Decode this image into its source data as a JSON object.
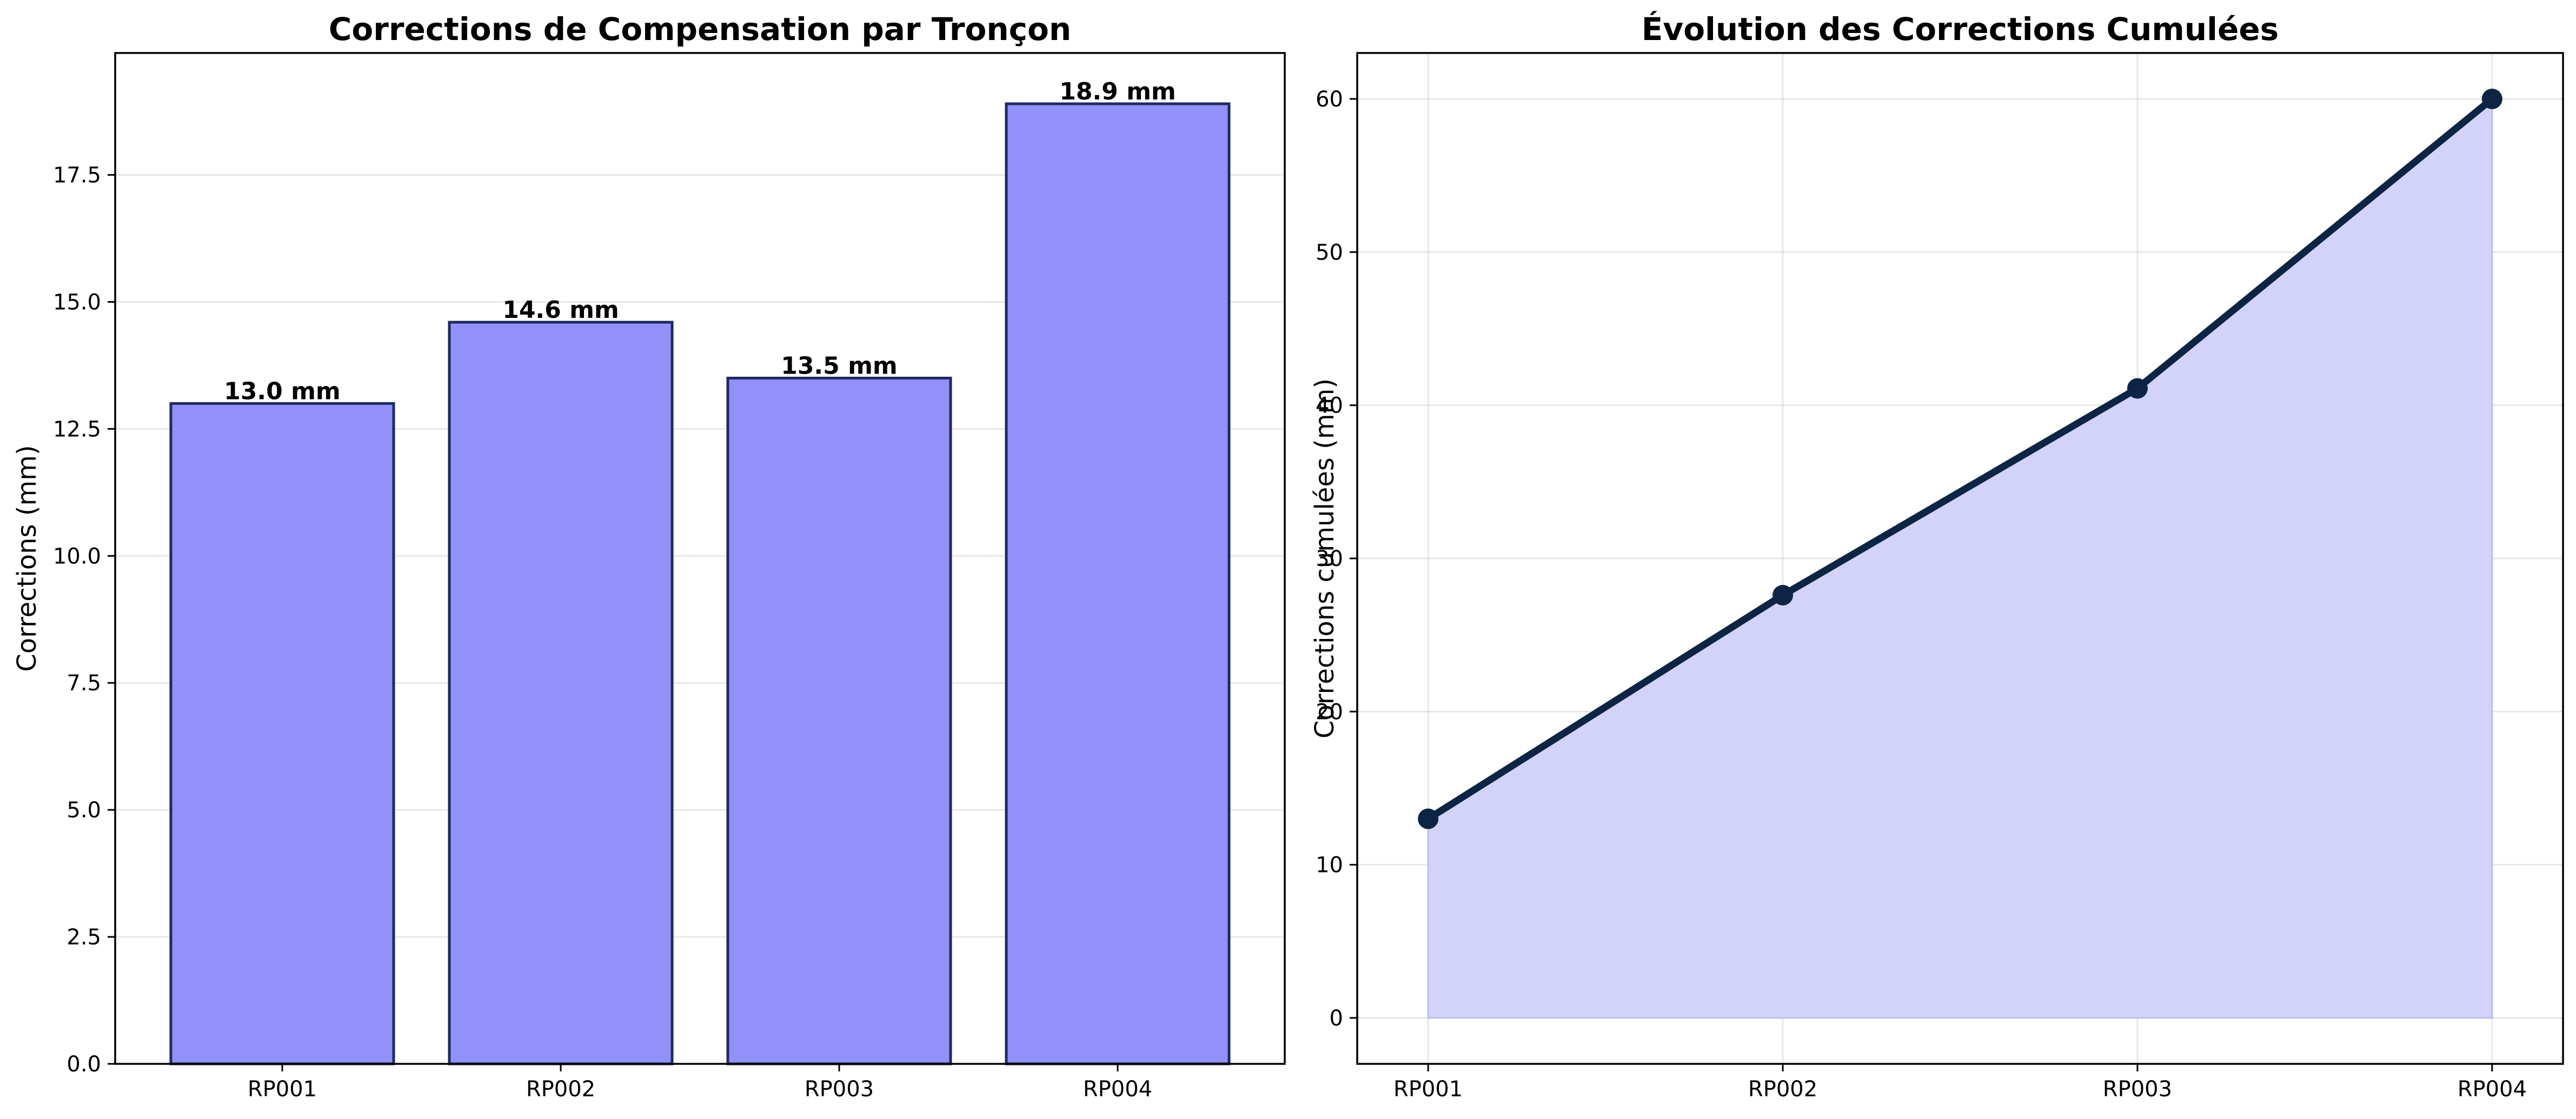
{
  "chart_data": [
    {
      "type": "bar",
      "title": "Corrections de Compensation par Tronçon",
      "xlabel": "",
      "ylabel": "Corrections (mm)",
      "categories": [
        "RP001",
        "RP002",
        "RP003",
        "RP004"
      ],
      "values": [
        13.0,
        14.6,
        13.5,
        18.9
      ],
      "data_labels": [
        "13.0 mm",
        "14.6 mm",
        "13.5 mm",
        "18.9 mm"
      ],
      "ylim": [
        0,
        19.9
      ],
      "yticks": [
        0.0,
        2.5,
        5.0,
        7.5,
        10.0,
        12.5,
        15.0,
        17.5
      ],
      "ytick_labels": [
        "0.0",
        "2.5",
        "5.0",
        "7.5",
        "10.0",
        "12.5",
        "15.0",
        "17.5"
      ],
      "grid": true,
      "bar_color": "#9191f9",
      "edge_color": "#1e2a5e"
    },
    {
      "type": "area",
      "title": "Évolution des Corrections Cumulées",
      "xlabel": "",
      "ylabel": "Corrections cumulées (mm)",
      "categories": [
        "RP001",
        "RP002",
        "RP003",
        "RP004"
      ],
      "values": [
        13.0,
        27.6,
        41.1,
        60.0
      ],
      "ylim": [
        -3,
        63
      ],
      "yticks": [
        0,
        10,
        20,
        30,
        40,
        50,
        60
      ],
      "ytick_labels": [
        "0",
        "10",
        "20",
        "30",
        "40",
        "50",
        "60"
      ],
      "grid": true,
      "line_color": "#0d2444",
      "fill_color": "#d3d3f9"
    }
  ]
}
